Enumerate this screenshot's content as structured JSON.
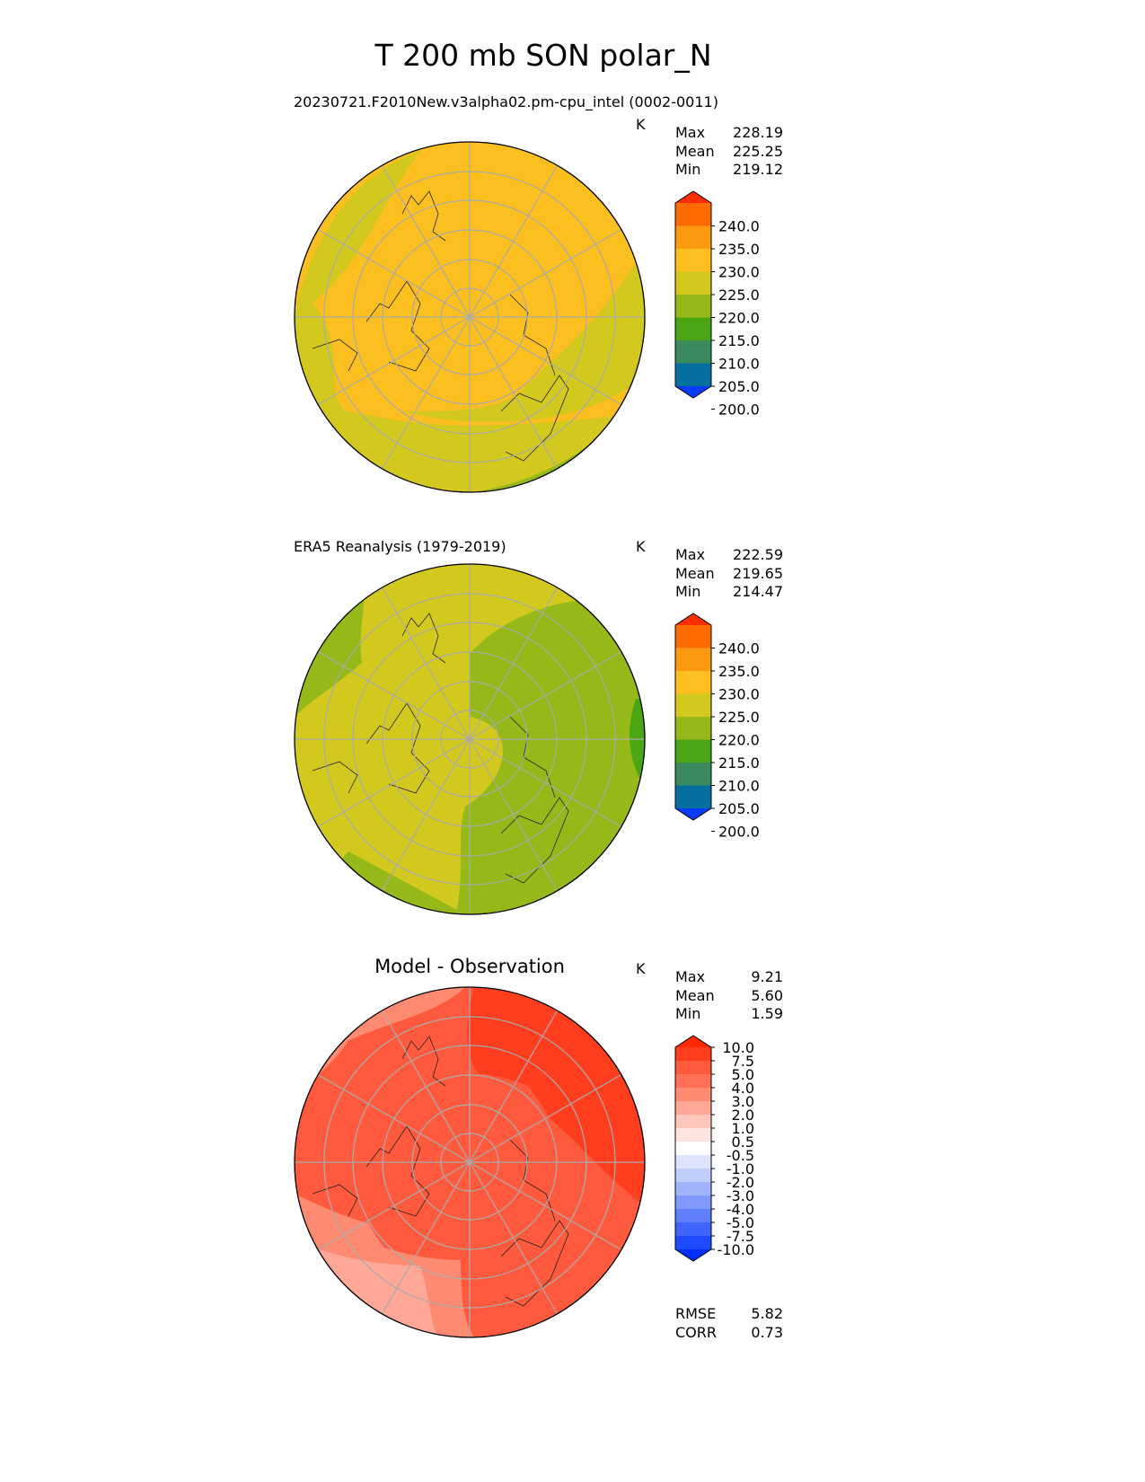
{
  "figure_title": "T 200 mb SON polar_N",
  "panels": [
    {
      "subtitle": "20230721.F2010New.v3alpha02.pm-cpu_intel (0002-0011)",
      "units": "K",
      "stats": [
        {
          "label": "Max",
          "value": "228.19"
        },
        {
          "label": "Mean",
          "value": "225.25"
        },
        {
          "label": "Min",
          "value": "219.12"
        }
      ],
      "map_base_color": "#fbbf1f",
      "colorbar": {
        "tick_labels": [
          "240.0",
          "235.0",
          "230.0",
          "225.0",
          "220.0",
          "215.0",
          "210.0",
          "205.0",
          "200.0"
        ],
        "colors": [
          "#ff2e00",
          "#ff6a00",
          "#fb9a10",
          "#fbbf1f",
          "#d2c81e",
          "#95b918",
          "#4ca614",
          "#3a8a5e",
          "#0570a0",
          "#0a3cff"
        ]
      }
    },
    {
      "subtitle": "ERA5 Reanalysis (1979-2019)",
      "units": "K",
      "stats": [
        {
          "label": "Max",
          "value": "222.59"
        },
        {
          "label": "Mean",
          "value": "219.65"
        },
        {
          "label": "Min",
          "value": "214.47"
        }
      ],
      "map_base_color": "#d2c81e",
      "colorbar": {
        "tick_labels": [
          "240.0",
          "235.0",
          "230.0",
          "225.0",
          "220.0",
          "215.0",
          "210.0",
          "205.0",
          "200.0"
        ],
        "colors": [
          "#ff2e00",
          "#ff6a00",
          "#fb9a10",
          "#fbbf1f",
          "#d2c81e",
          "#95b918",
          "#4ca614",
          "#3a8a5e",
          "#0570a0",
          "#0a3cff"
        ]
      }
    },
    {
      "subtitle": "Model - Observation",
      "units": "K",
      "stats": [
        {
          "label": "Max",
          "value": "9.21"
        },
        {
          "label": "Mean",
          "value": "5.60"
        },
        {
          "label": "Min",
          "value": "1.59"
        }
      ],
      "map_base_color": "#ff5a3d",
      "colorbar": {
        "tick_labels": [
          "10.0",
          "7.5",
          "5.0",
          "4.0",
          "3.0",
          "2.0",
          "1.0",
          "0.5",
          "-0.5",
          "-1.0",
          "-2.0",
          "-3.0",
          "-4.0",
          "-5.0",
          "-7.5",
          "-10.0"
        ],
        "colors": [
          "#ff2a00",
          "#ff3d1f",
          "#ff5a3d",
          "#ff7057",
          "#ff8a72",
          "#ffa898",
          "#ffc6bc",
          "#ffe4e0",
          "#ffffff",
          "#dde4fb",
          "#c0cdfa",
          "#a0b3fb",
          "#8099fb",
          "#5f7ffb",
          "#3e64fc",
          "#1f4afd",
          "#0030ff"
        ]
      },
      "metrics": [
        {
          "label": "RMSE",
          "value": "5.82"
        },
        {
          "label": "CORR",
          "value": "0.73"
        }
      ]
    }
  ]
}
